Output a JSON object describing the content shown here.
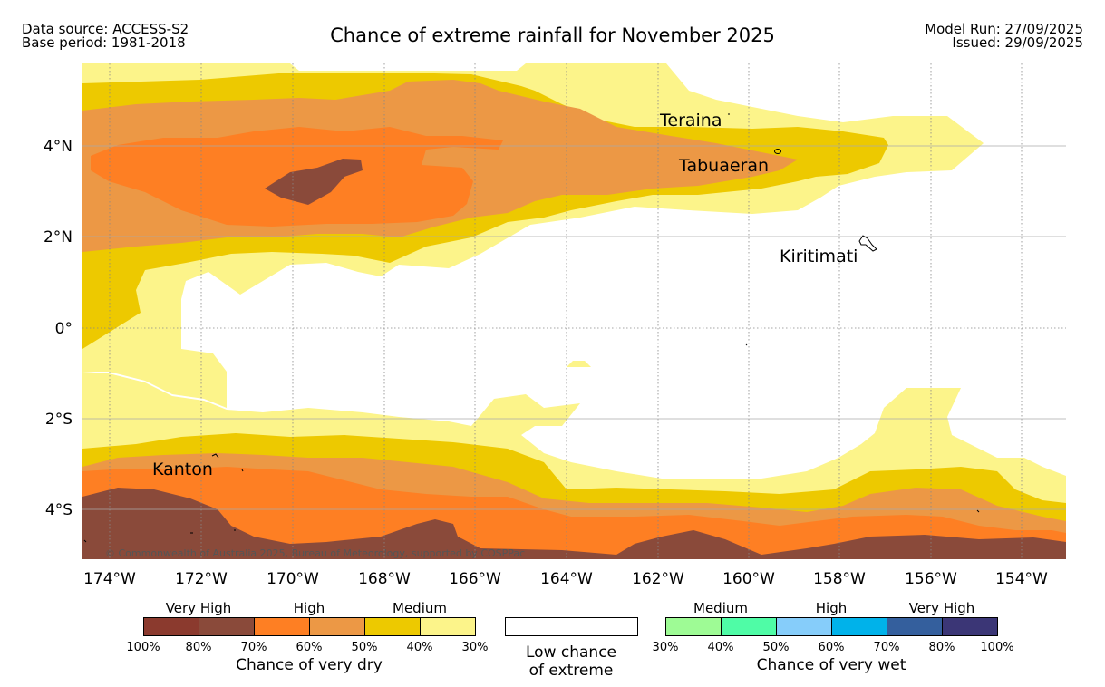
{
  "header": {
    "data_source": "Data source: ACCESS-S2",
    "base_period": "Base period: 1981-2018",
    "title": "Chance of extreme rainfall for November 2025",
    "model_run": "Model Run: 27/09/2025",
    "issued": "Issued: 29/09/2025"
  },
  "map": {
    "lon_labels": [
      "174°W",
      "172°W",
      "170°W",
      "168°W",
      "166°W",
      "164°W",
      "162°W",
      "160°W",
      "158°W",
      "156°W",
      "154°W"
    ],
    "lat_labels": [
      "4°N",
      "2°N",
      "0°",
      "2°S",
      "4°S"
    ],
    "places": [
      "Teraina",
      "Tabuaeran",
      "Kiritimati",
      "Kanton"
    ],
    "copyright": "© Commonwealth of Australia 2025, Bureau of Meteorology, supported by COSPPac"
  },
  "legend": {
    "dry": {
      "groups": [
        "Very High",
        "High",
        "Medium"
      ],
      "ticks": [
        "100%",
        "80%",
        "70%",
        "60%",
        "50%",
        "40%",
        "30%"
      ],
      "colors": [
        "#8b3a2e",
        "#8a4a3a",
        "#fe7f23",
        "#ec9845",
        "#edc900",
        "#fcf48a"
      ],
      "caption": "Chance of very dry"
    },
    "low": {
      "line1": "Low chance",
      "line2": "of extreme"
    },
    "wet": {
      "groups": [
        "Medium",
        "High",
        "Very High"
      ],
      "ticks": [
        "30%",
        "40%",
        "50%",
        "60%",
        "70%",
        "80%",
        "100%"
      ],
      "colors": [
        "#9efb95",
        "#4ffca6",
        "#86cdfa",
        "#00b2ea",
        "#345f9d",
        "#3b3676"
      ],
      "caption": "Chance of very wet"
    }
  }
}
